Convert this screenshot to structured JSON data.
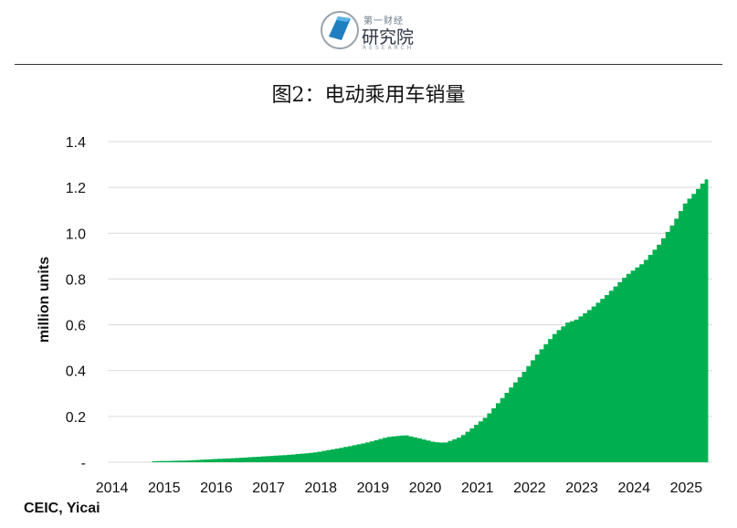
{
  "header": {
    "logo_top": "第一财经",
    "logo_main": "研究院",
    "logo_sub": "RESEARCH"
  },
  "chart_data": {
    "type": "area",
    "title": "图2：电动乘用车销量",
    "xlabel": "",
    "ylabel": "million units",
    "ylim": [
      0,
      1.4
    ],
    "xlim": [
      2014,
      2025.58
    ],
    "grid": true,
    "legend": "none",
    "color": "#00b050",
    "x_ticks": [
      "2014",
      "2015",
      "2016",
      "2017",
      "2018",
      "2019",
      "2020",
      "2021",
      "2022",
      "2023",
      "2024",
      "2025"
    ],
    "y_ticks": [
      "-",
      "0.2",
      "0.4",
      "0.6",
      "0.8",
      "1.0",
      "1.2",
      "1.4"
    ],
    "series": [
      {
        "values": [
          [
            2014.85,
            0.003
          ],
          [
            2015.0,
            0.005
          ],
          [
            2015.5,
            0.007
          ],
          [
            2016.0,
            0.013
          ],
          [
            2016.5,
            0.018
          ],
          [
            2017.0,
            0.025
          ],
          [
            2017.5,
            0.032
          ],
          [
            2018.0,
            0.042
          ],
          [
            2018.5,
            0.062
          ],
          [
            2019.0,
            0.085
          ],
          [
            2019.4,
            0.11
          ],
          [
            2019.75,
            0.118
          ],
          [
            2020.0,
            0.105
          ],
          [
            2020.3,
            0.088
          ],
          [
            2020.5,
            0.085
          ],
          [
            2020.8,
            0.11
          ],
          [
            2021.0,
            0.145
          ],
          [
            2021.3,
            0.2
          ],
          [
            2021.6,
            0.28
          ],
          [
            2022.0,
            0.39
          ],
          [
            2022.3,
            0.48
          ],
          [
            2022.6,
            0.56
          ],
          [
            2022.85,
            0.61
          ],
          [
            2023.0,
            0.62
          ],
          [
            2023.3,
            0.67
          ],
          [
            2023.6,
            0.73
          ],
          [
            2024.0,
            0.82
          ],
          [
            2024.3,
            0.87
          ],
          [
            2024.6,
            0.95
          ],
          [
            2024.9,
            1.05
          ],
          [
            2025.1,
            1.13
          ],
          [
            2025.3,
            1.18
          ],
          [
            2025.5,
            1.235
          ]
        ]
      }
    ]
  },
  "source": "CEIC, Yicai"
}
